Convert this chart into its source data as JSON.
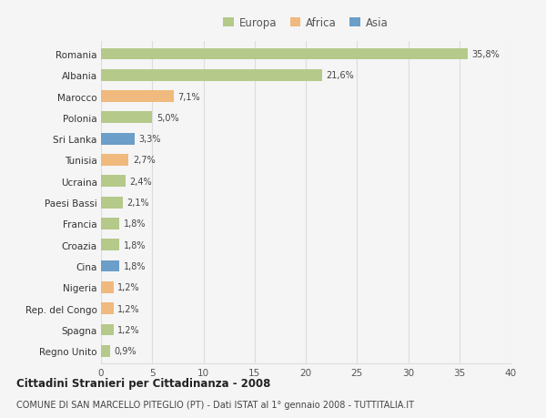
{
  "countries": [
    "Romania",
    "Albania",
    "Marocco",
    "Polonia",
    "Sri Lanka",
    "Tunisia",
    "Ucraina",
    "Paesi Bassi",
    "Francia",
    "Croazia",
    "Cina",
    "Nigeria",
    "Rep. del Congo",
    "Spagna",
    "Regno Unito"
  ],
  "values": [
    35.8,
    21.6,
    7.1,
    5.0,
    3.3,
    2.7,
    2.4,
    2.1,
    1.8,
    1.8,
    1.8,
    1.2,
    1.2,
    1.2,
    0.9
  ],
  "labels": [
    "35,8%",
    "21,6%",
    "7,1%",
    "5,0%",
    "3,3%",
    "2,7%",
    "2,4%",
    "2,1%",
    "1,8%",
    "1,8%",
    "1,8%",
    "1,2%",
    "1,2%",
    "1,2%",
    "0,9%"
  ],
  "continents": [
    "Europa",
    "Europa",
    "Africa",
    "Europa",
    "Asia",
    "Africa",
    "Europa",
    "Europa",
    "Europa",
    "Europa",
    "Asia",
    "Africa",
    "Africa",
    "Europa",
    "Europa"
  ],
  "colors": {
    "Europa": "#b5c98a",
    "Africa": "#f0b97d",
    "Asia": "#6b9ec8"
  },
  "xlim": [
    0,
    40
  ],
  "xticks": [
    0,
    5,
    10,
    15,
    20,
    25,
    30,
    35,
    40
  ],
  "title": "Cittadini Stranieri per Cittadinanza - 2008",
  "subtitle": "COMUNE DI SAN MARCELLO PITEGLIO (PT) - Dati ISTAT al 1° gennaio 2008 - TUTTITALIA.IT",
  "background_color": "#f5f5f5",
  "grid_color": "#dddddd",
  "bar_height": 0.55
}
